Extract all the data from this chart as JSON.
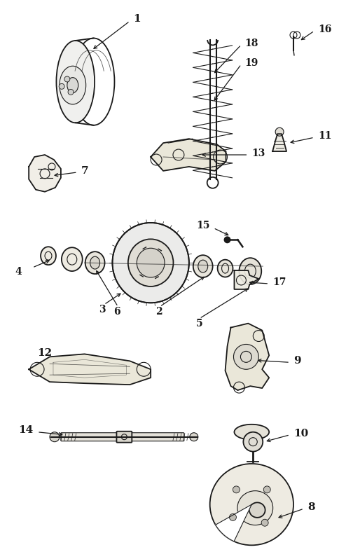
{
  "bg_color": "#ffffff",
  "line_color": "#1a1a1a",
  "fig_width": 4.85,
  "fig_height": 7.98,
  "dpi": 100
}
